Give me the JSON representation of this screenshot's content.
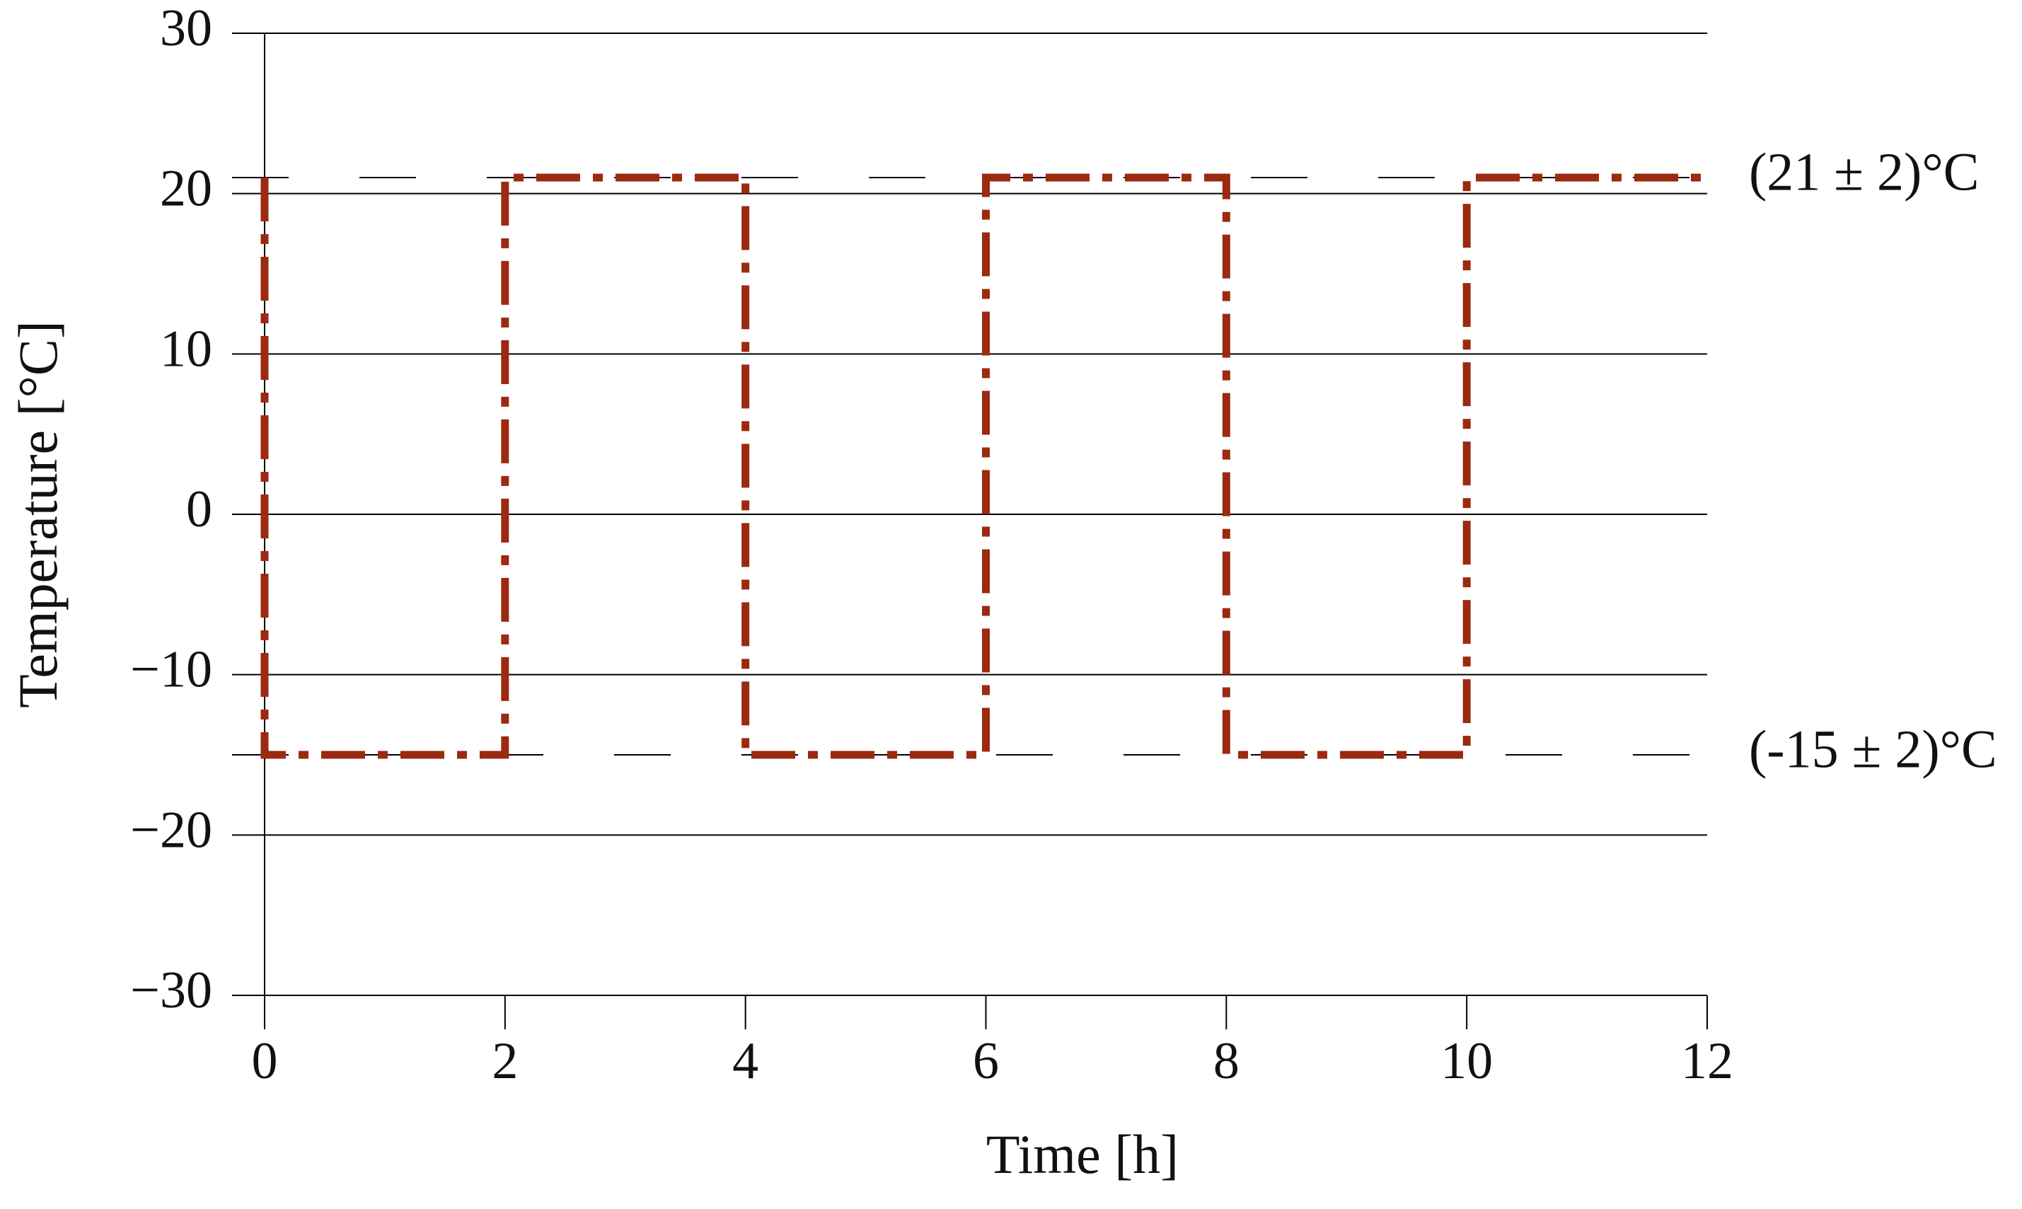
{
  "chart_data": {
    "type": "line",
    "x_label": "Time [h]",
    "y_label": "Temperature [°C]",
    "x": [
      0,
      0,
      2,
      2,
      4,
      4,
      6,
      6,
      8,
      8,
      10,
      10,
      12
    ],
    "series": [
      {
        "color": "#9b2a10",
        "values": [
          21,
          -15,
          -15,
          21,
          21,
          -15,
          -15,
          21,
          21,
          -15,
          -15,
          21,
          21
        ]
      }
    ],
    "reference_lines": [
      {
        "value": 21,
        "label": "(21 ± 2)°C"
      },
      {
        "value": -15,
        "label": "(-15 ± 2)°C"
      }
    ],
    "xlim": [
      0,
      12
    ],
    "xticks": [
      0,
      2,
      4,
      6,
      8,
      10,
      12
    ],
    "ylim": [
      -30,
      30
    ],
    "yticks": [
      {
        "value": -30,
        "label": "−30"
      },
      {
        "value": -20,
        "label": "−20"
      },
      {
        "value": -10,
        "label": "−10"
      },
      0,
      10,
      20,
      30
    ],
    "grid": true
  }
}
